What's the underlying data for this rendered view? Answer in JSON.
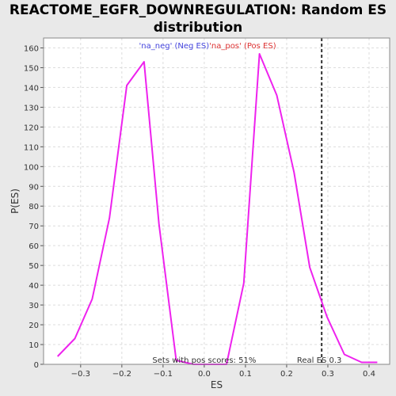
{
  "chart_data": {
    "type": "line",
    "title_line1": "REACTOME_EGFR_DOWNREGULATION: Random ES",
    "title_line2": "distribution",
    "xlabel": "ES",
    "ylabel": "P(ES)",
    "xlim": [
      -0.39,
      0.45
    ],
    "ylim": [
      0,
      165
    ],
    "x_ticks": [
      -0.3,
      -0.2,
      -0.1,
      0.0,
      0.1,
      0.2,
      0.3,
      0.4
    ],
    "x_tick_labels": [
      "−0.3",
      "−0.2",
      "−0.1",
      "0.0",
      "0.1",
      "0.2",
      "0.3",
      "0.4"
    ],
    "y_ticks": [
      0,
      10,
      20,
      30,
      40,
      50,
      60,
      70,
      80,
      90,
      100,
      110,
      120,
      130,
      140,
      150,
      160
    ],
    "grid": true,
    "series": [
      {
        "color": "#ee22ee",
        "x": [
          -0.356,
          -0.314,
          -0.272,
          -0.23,
          -0.188,
          -0.146,
          -0.11,
          -0.068,
          -0.026,
          0.012,
          0.054,
          0.096,
          0.134,
          0.176,
          0.218,
          0.256,
          0.298,
          0.34,
          0.382,
          0.42
        ],
        "y": [
          4,
          13,
          33,
          74,
          141,
          153,
          71,
          2,
          0,
          0,
          0,
          41,
          157,
          136,
          97,
          49,
          24,
          5,
          1,
          1
        ]
      }
    ],
    "legend": [
      {
        "label": "'na_neg' (Neg ES)",
        "color": "#4444dd"
      },
      {
        "label": "'na_pos' (Pos ES)",
        "color": "#dd3333"
      }
    ],
    "real_es": {
      "x": 0.285,
      "label": "Real ES 0.3"
    },
    "annotation": "Sets with pos scores: 51%"
  }
}
